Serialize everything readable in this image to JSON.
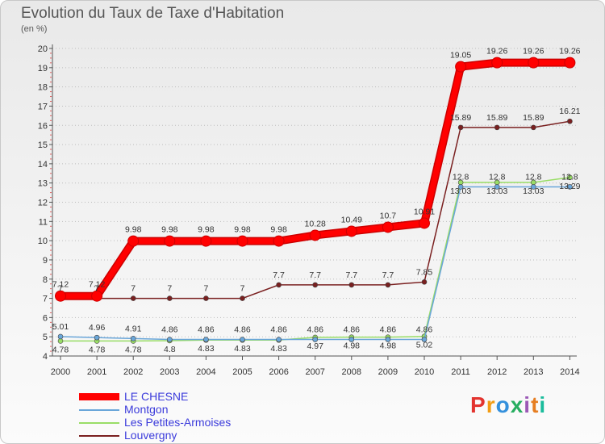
{
  "title": "Evolution du Taux de Taxe d'Habitation",
  "unit_label": "(en %)",
  "brand": {
    "text": "Proxiti",
    "colors": [
      "#e3342f",
      "#f39c12",
      "#3490dc",
      "#27ae60",
      "#9b59b6",
      "#e67e22",
      "#1abc9c"
    ]
  },
  "chart_data": {
    "type": "line",
    "title": "Evolution du Taux de Taxe d'Habitation",
    "ylabel": "(en %)",
    "xlabel": "",
    "x": [
      "2000",
      "2001",
      "2002",
      "2003",
      "2004",
      "2005",
      "2006",
      "2007",
      "2008",
      "2009",
      "2010",
      "2011",
      "2012",
      "2013",
      "2014"
    ],
    "ylim": [
      4,
      20
    ],
    "y_ticks": [
      "4",
      "5",
      "6",
      "7",
      "8",
      "9",
      "10",
      "11",
      "12",
      "13",
      "14",
      "15",
      "16",
      "17",
      "18",
      "19",
      "20"
    ],
    "grid": "horizontal dotted",
    "series": [
      {
        "name": "LE CHESNE",
        "color": "#ff0000",
        "emphasis": true,
        "values": [
          7.12,
          7.12,
          9.98,
          9.98,
          9.98,
          9.98,
          9.98,
          10.28,
          10.49,
          10.7,
          10.91,
          19.05,
          19.26,
          19.26,
          19.26
        ],
        "labels": [
          "7.12",
          "7.12",
          "9.98",
          "9.98",
          "9.98",
          "9.98",
          "9.98",
          "10.28",
          "10.49",
          "10.7",
          "10.91",
          "19.05",
          "19.26",
          "19.26",
          "19.26"
        ]
      },
      {
        "name": "Montgon",
        "color": "#6aa6d9",
        "values": [
          5.01,
          4.96,
          4.91,
          4.86,
          4.86,
          4.86,
          4.86,
          4.86,
          4.86,
          4.86,
          4.86,
          12.8,
          12.8,
          12.8,
          12.8
        ],
        "labels": [
          "5.01",
          "4.96",
          "4.91",
          "4.86",
          "4.86",
          "4.86",
          "4.86",
          "4.86",
          "4.86",
          "4.86",
          "4.86",
          "12.8",
          "12.8",
          "12.8",
          "12.8"
        ]
      },
      {
        "name": "Les Petites-Armoises",
        "color": "#99dd66",
        "values": [
          4.78,
          4.78,
          4.78,
          4.8,
          4.83,
          4.83,
          4.83,
          4.97,
          4.98,
          4.98,
          5.02,
          13.03,
          13.03,
          13.03,
          13.29
        ],
        "labels": [
          "4.78",
          "4.78",
          "4.78",
          "4.8",
          "4.83",
          "4.83",
          "4.83",
          "4.97",
          "4.98",
          "4.98",
          "5.02",
          "13.03",
          "13.03",
          "13.03",
          "13.29"
        ]
      },
      {
        "name": "Louvergny",
        "color": "#7a2020",
        "values": [
          7,
          7,
          7,
          7,
          7,
          7,
          7.7,
          7.7,
          7.7,
          7.7,
          7.85,
          15.89,
          15.89,
          15.89,
          16.21
        ],
        "labels": [
          "7",
          "7",
          "7",
          "7",
          "7",
          "7",
          "7.7",
          "7.7",
          "7.7",
          "7.7",
          "7.85",
          "15.89",
          "15.89",
          "15.89",
          "16.21"
        ]
      }
    ]
  }
}
